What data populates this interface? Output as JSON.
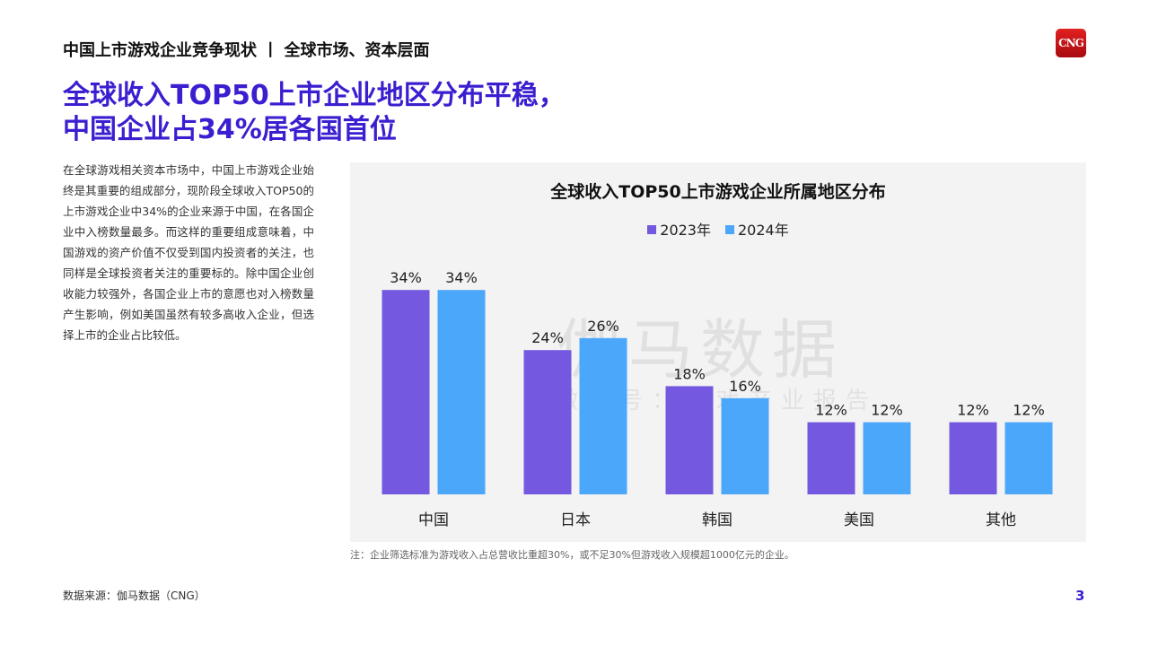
{
  "header": {
    "section": "中国上市游戏企业竞争现状 丨 全球市场、资本层面",
    "logo": "CNG"
  },
  "headline": {
    "line1": "全球收入TOP50上市企业地区分布平稳，",
    "line2": "中国企业占34%居各国首位"
  },
  "paragraph": "在全球游戏相关资本市场中，中国上市游戏企业始终是其重要的组成部分，现阶段全球收入TOP50的上市游戏企业中34%的企业来源于中国，在各国企业中入榜数量最多。而这样的重要组成意味着，中国游戏的资产价值不仅受到国内投资者的关注，也同样是全球投资者关注的重要标的。除中国企业创收能力较强外，各国企业上市的意愿也对入榜数量产生影响，例如美国虽然有较多高收入企业，但选择上市的企业占比较低。",
  "watermark": {
    "main": "伽马数据",
    "sub": "微信号：游戏产业报告"
  },
  "note": "注：企业筛选标准为游戏收入占总营收比重超30%，或不足30%但游戏收入规模超1000亿元的企业。",
  "source": "数据来源：伽马数据（CNG）",
  "page_number": "3",
  "chart_data": {
    "type": "bar",
    "title": "全球收入TOP50上市游戏企业所属地区分布",
    "categories": [
      "中国",
      "日本",
      "韩国",
      "美国",
      "其他"
    ],
    "series": [
      {
        "name": "2023年",
        "values": [
          34,
          24,
          18,
          12,
          12
        ],
        "labels": [
          "34%",
          "24%",
          "18%",
          "12%",
          "12%"
        ],
        "color": "#7459e0"
      },
      {
        "name": "2024年",
        "values": [
          34,
          26,
          16,
          12,
          12
        ],
        "labels": [
          "34%",
          "26%",
          "16%",
          "12%",
          "12%"
        ],
        "color": "#4ba7fa"
      }
    ],
    "unit": "%",
    "ylim": [
      0,
      40
    ],
    "grid": false,
    "legend": "top-center"
  }
}
